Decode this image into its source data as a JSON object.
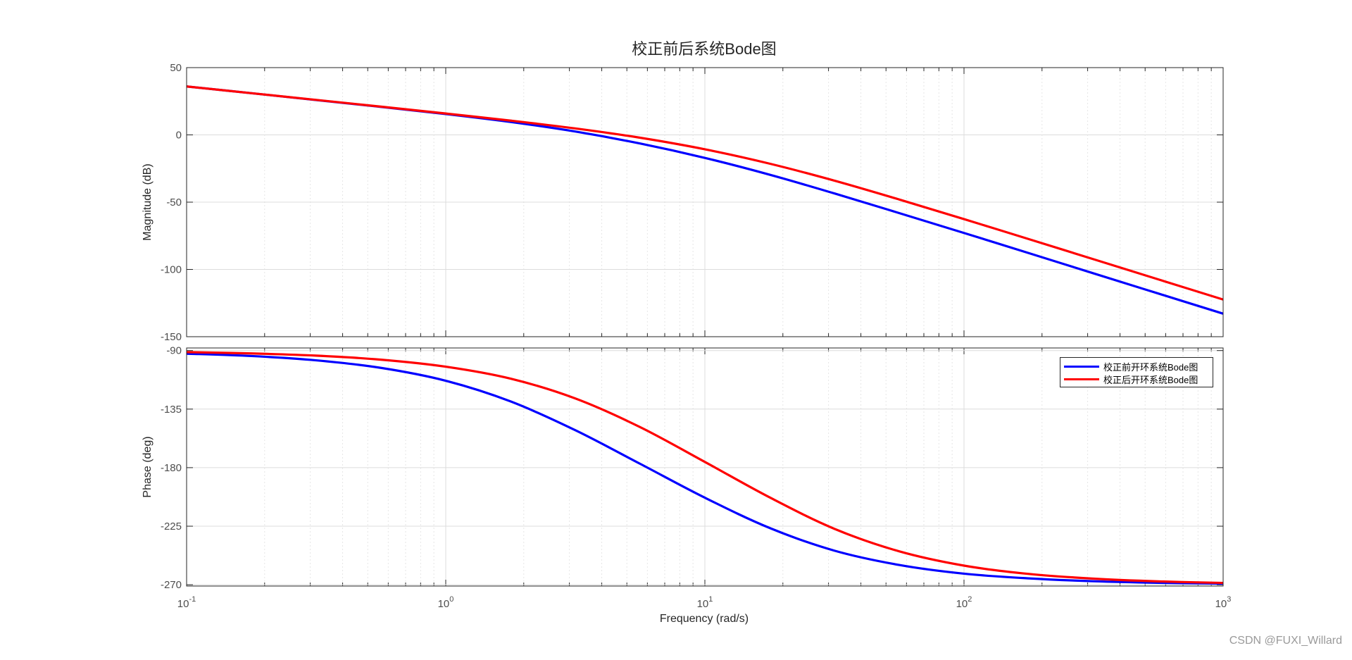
{
  "chart_data": {
    "type": "line",
    "title": "校正前后系统Bode图",
    "xlabel": "Frequency  (rad/s)",
    "xscale": "log",
    "xlim": [
      0.1,
      1000
    ],
    "xticks": [
      0.1,
      1,
      10,
      100,
      1000
    ],
    "xtick_labels": [
      {
        "base": "10",
        "exp": "-1"
      },
      {
        "base": "10",
        "exp": "0"
      },
      {
        "base": "10",
        "exp": "1"
      },
      {
        "base": "10",
        "exp": "2"
      },
      {
        "base": "10",
        "exp": "3"
      }
    ],
    "grid": true,
    "legend_placement": "top-right (phase plot)",
    "x": [
      0.1,
      0.178,
      0.316,
      0.562,
      1,
      1.78,
      3.16,
      5.62,
      10,
      17.8,
      31.6,
      56.2,
      100,
      178,
      316,
      562,
      1000
    ],
    "panels": [
      {
        "ylabel": "Magnitude (dB)",
        "ylim": [
          -150,
          50
        ],
        "yticks": [
          50,
          0,
          -50,
          -100,
          -150
        ],
        "ytick_labels": [
          "50",
          "0",
          "-50",
          "-100",
          "-150"
        ],
        "series": [
          {
            "name": "校正前开环系统Bode图",
            "color": "#0000ff",
            "values": [
              36.0,
              31.0,
              25.9,
              20.8,
              15.5,
              9.6,
              2.5,
              -6.4,
              -17.1,
              -29.6,
              -43.5,
              -58.1,
              -72.9,
              -87.9,
              -102.9,
              -117.9,
              -132.9
            ]
          },
          {
            "name": "校正后开环系统Bode图",
            "color": "#ff0000",
            "values": [
              36.0,
              31.0,
              26.0,
              21.0,
              15.9,
              10.6,
              4.8,
              -2.1,
              -10.7,
              -21.4,
              -34.0,
              -48.0,
              -62.6,
              -77.5,
              -92.4,
              -107.4,
              -122.4
            ]
          }
        ]
      },
      {
        "ylabel": "Phase (deg)",
        "ylim": [
          -271,
          -88
        ],
        "yticks": [
          -90,
          -135,
          -180,
          -225,
          -270
        ],
        "ytick_labels": [
          "-90",
          "-135",
          "-180",
          "-225",
          "-270"
        ],
        "series": [
          {
            "name": "校正前开环系统Bode图",
            "color": "#0000ff",
            "values": [
              -92.4,
              -94.2,
              -97.5,
              -103.3,
              -113.2,
              -129.1,
              -151.2,
              -177.0,
              -203.1,
              -226.4,
              -243.8,
              -254.8,
              -261.5,
              -265.1,
              -267.3,
              -268.5,
              -269.1
            ]
          },
          {
            "name": "校正后开环系统Bode图",
            "color": "#ff0000",
            "values": [
              -91.2,
              -92.2,
              -93.9,
              -97.0,
              -102.4,
              -111.6,
              -126.8,
              -148.8,
              -175.6,
              -202.9,
              -227.0,
              -244.3,
              -255.3,
              -261.7,
              -265.3,
              -267.4,
              -268.6
            ]
          }
        ]
      }
    ]
  },
  "legend": {
    "items": [
      {
        "label": "校正前开环系统Bode图",
        "color": "#0000ff"
      },
      {
        "label": "校正后开环系统Bode图",
        "color": "#ff0000"
      }
    ]
  },
  "watermark": "CSDN @FUXI_Willard"
}
